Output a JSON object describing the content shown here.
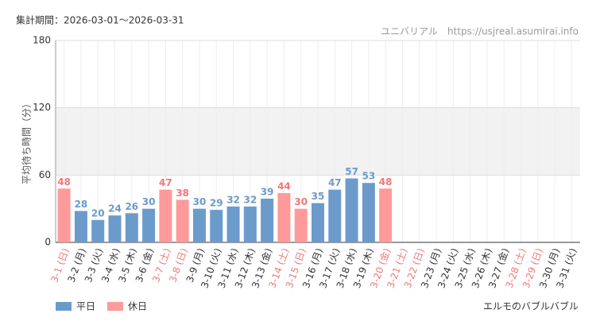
{
  "chart_data": {
    "type": "bar",
    "header": "集計期間：2026-03-01～2026-03-31",
    "source": "ユニバリアル　https://usjreal.asumirai.info",
    "title": "エルモのバブルバブル",
    "y_label": "平均待ち時間（分）",
    "categories": [
      "3-1 (日)",
      "3-2 (月)",
      "3-3 (火)",
      "3-4 (水)",
      "3-5 (木)",
      "3-6 (金)",
      "3-7 (土)",
      "3-8 (日)",
      "3-9 (月)",
      "3-10 (火)",
      "3-11 (水)",
      "3-12 (木)",
      "3-13 (金)",
      "3-14 (土)",
      "3-15 (日)",
      "3-16 (月)",
      "3-17 (火)",
      "3-18 (水)",
      "3-19 (木)",
      "3-20 (金)",
      "3-21 (土)",
      "3-22 (日)",
      "3-23 (月)",
      "3-24 (火)",
      "3-25 (水)",
      "3-26 (木)",
      "3-27 (金)",
      "3-28 (土)",
      "3-29 (日)",
      "3-30 (月)",
      "3-31 (火)"
    ],
    "category_colors": [
      "#f07878",
      "#333",
      "#333",
      "#333",
      "#333",
      "#333",
      "#f07878",
      "#f07878",
      "#333",
      "#333",
      "#333",
      "#333",
      "#333",
      "#f07878",
      "#f07878",
      "#333",
      "#333",
      "#333",
      "#333",
      "#f07878",
      "#f07878",
      "#f07878",
      "#333",
      "#333",
      "#333",
      "#333",
      "#333",
      "#f07878",
      "#f07878",
      "#333",
      "#333"
    ],
    "series": [
      {
        "name": "平日",
        "color": "#6b9bcb",
        "values": [
          null,
          28,
          20,
          24,
          26,
          30,
          null,
          null,
          30,
          29,
          32,
          32,
          39,
          null,
          null,
          35,
          47,
          57,
          53,
          null,
          null,
          null,
          null,
          null,
          null,
          null,
          null,
          null,
          null,
          null,
          null
        ]
      },
      {
        "name": "休日",
        "color": "#ff9a9a",
        "label_color": "#f07878",
        "values": [
          48,
          null,
          null,
          null,
          null,
          null,
          47,
          38,
          null,
          null,
          null,
          null,
          null,
          44,
          30,
          null,
          null,
          null,
          null,
          48,
          null,
          null,
          null,
          null,
          null,
          null,
          null,
          null,
          null,
          null,
          null
        ]
      }
    ],
    "ylim": [
      0,
      180
    ],
    "yticks": [
      0,
      60,
      120,
      180
    ],
    "band": [
      60,
      120
    ],
    "grid": true
  }
}
